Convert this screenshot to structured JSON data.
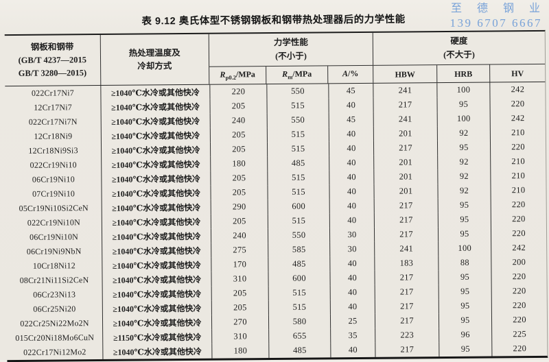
{
  "watermark": {
    "line1": "至 德 钢 业",
    "line2": "139 6707 6667",
    "color": "#78a2d8"
  },
  "title": "表 9.12  奥氏体型不锈钢钢板和钢带热处理器后的力学性能",
  "table": {
    "col1_header": [
      "钢板和钢带",
      "(GB/T 4237—2015",
      "GB/T 3280—2015)"
    ],
    "col2_header": [
      "热处理温度及",
      "冷却方式"
    ],
    "mech_group": {
      "title": "力学性能",
      "subtitle": "(不小于)",
      "cols": [
        {
          "sym": "R",
          "sub": "p0.2",
          "unit": "/MPa"
        },
        {
          "sym": "R",
          "sub": "m",
          "unit": "/MPa"
        },
        {
          "sym": "A",
          "sub": "",
          "unit": "/%"
        }
      ]
    },
    "hard_group": {
      "title": "硬度",
      "subtitle": "(不大于)",
      "cols": [
        "HBW",
        "HRB",
        "HV"
      ]
    },
    "rows": [
      {
        "grade": "022Cr17Ni7",
        "treatment": "≥1040℃水冷或其他快冷",
        "rp02": "220",
        "rm": "550",
        "a": "45",
        "hbw": "241",
        "hrb": "100",
        "hv": "242"
      },
      {
        "grade": "12Cr17Ni7",
        "treatment": "≥1040℃水冷或其他快冷",
        "rp02": "205",
        "rm": "515",
        "a": "40",
        "hbw": "217",
        "hrb": "95",
        "hv": "220"
      },
      {
        "grade": "022Cr17Ni7N",
        "treatment": "≥1040℃水冷或其他快冷",
        "rp02": "240",
        "rm": "550",
        "a": "45",
        "hbw": "241",
        "hrb": "100",
        "hv": "242"
      },
      {
        "grade": "12Cr18Ni9",
        "treatment": "≥1040℃水冷或其他快冷",
        "rp02": "205",
        "rm": "515",
        "a": "40",
        "hbw": "201",
        "hrb": "92",
        "hv": "210"
      },
      {
        "grade": "12Cr18Ni9Si3",
        "treatment": "≥1040℃水冷或其他快冷",
        "rp02": "205",
        "rm": "515",
        "a": "40",
        "hbw": "217",
        "hrb": "95",
        "hv": "220"
      },
      {
        "grade": "022Cr19Ni10",
        "treatment": "≥1040℃水冷或其他快冷",
        "rp02": "180",
        "rm": "485",
        "a": "40",
        "hbw": "201",
        "hrb": "92",
        "hv": "210"
      },
      {
        "grade": "06Cr19Ni10",
        "treatment": "≥1040℃水冷或其他快冷",
        "rp02": "205",
        "rm": "515",
        "a": "40",
        "hbw": "201",
        "hrb": "92",
        "hv": "210"
      },
      {
        "grade": "07Cr19Ni10",
        "treatment": "≥1040℃水冷或其他快冷",
        "rp02": "205",
        "rm": "515",
        "a": "40",
        "hbw": "201",
        "hrb": "92",
        "hv": "210"
      },
      {
        "grade": "05Cr19Ni10Si2CeN",
        "treatment": "≥1040℃水冷或其他快冷",
        "rp02": "290",
        "rm": "600",
        "a": "40",
        "hbw": "217",
        "hrb": "95",
        "hv": "220"
      },
      {
        "grade": "022Cr19Ni10N",
        "treatment": "≥1040℃水冷或其他快冷",
        "rp02": "205",
        "rm": "515",
        "a": "40",
        "hbw": "217",
        "hrb": "95",
        "hv": "220"
      },
      {
        "grade": "06Cr19Ni10N",
        "treatment": "≥1040℃水冷或其他快冷",
        "rp02": "240",
        "rm": "550",
        "a": "30",
        "hbw": "217",
        "hrb": "95",
        "hv": "220"
      },
      {
        "grade": "06Cr19Ni9NbN",
        "treatment": "≥1040℃水冷或其他快冷",
        "rp02": "275",
        "rm": "585",
        "a": "30",
        "hbw": "241",
        "hrb": "100",
        "hv": "242"
      },
      {
        "grade": "10Cr18Ni12",
        "treatment": "≥1040℃水冷或其他快冷",
        "rp02": "170",
        "rm": "485",
        "a": "40",
        "hbw": "183",
        "hrb": "88",
        "hv": "200"
      },
      {
        "grade": "08Cr21Ni11Si2CeN",
        "treatment": "≥1040℃水冷或其他快冷",
        "rp02": "310",
        "rm": "600",
        "a": "40",
        "hbw": "217",
        "hrb": "95",
        "hv": "220"
      },
      {
        "grade": "06Cr23Ni13",
        "treatment": "≥1040℃水冷或其他快冷",
        "rp02": "205",
        "rm": "515",
        "a": "40",
        "hbw": "217",
        "hrb": "95",
        "hv": "220"
      },
      {
        "grade": "06Cr25Ni20",
        "treatment": "≥1040℃水冷或其他快冷",
        "rp02": "205",
        "rm": "515",
        "a": "40",
        "hbw": "217",
        "hrb": "95",
        "hv": "220"
      },
      {
        "grade": "022Cr25Ni22Mo2N",
        "treatment": "≥1040℃水冷或其他快冷",
        "rp02": "270",
        "rm": "580",
        "a": "25",
        "hbw": "217",
        "hrb": "95",
        "hv": "220"
      },
      {
        "grade": "015Cr20Ni18Mo6CuN",
        "treatment": "≥1150℃水冷或其他快冷",
        "rp02": "310",
        "rm": "655",
        "a": "35",
        "hbw": "223",
        "hrb": "96",
        "hv": "225"
      },
      {
        "grade": "022Cr17Ni12Mo2",
        "treatment": "≥1040℃水冷或其他快冷",
        "rp02": "180",
        "rm": "485",
        "a": "40",
        "hbw": "217",
        "hrb": "95",
        "hv": "220"
      }
    ]
  }
}
